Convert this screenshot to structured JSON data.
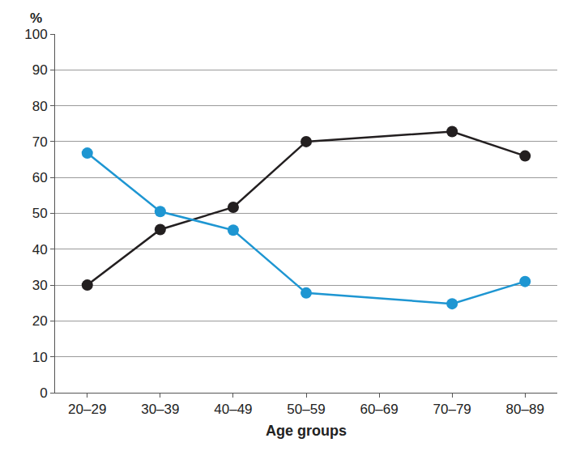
{
  "chart_data": {
    "type": "line",
    "categories": [
      "20–29",
      "30–39",
      "40–49",
      "50–59",
      "60–69",
      "70–79",
      "80–89"
    ],
    "series": [
      {
        "color": "#231f20",
        "values": [
          30,
          45.5,
          51.7,
          70,
          null,
          72.8,
          66
        ]
      },
      {
        "color": "#1e96d2",
        "values": [
          66.8,
          50.5,
          45.3,
          27.8,
          null,
          24.8,
          31
        ]
      }
    ],
    "x_label": "Age groups",
    "y_label": "%",
    "ylim": [
      0,
      100
    ],
    "yticks": [
      0,
      10,
      20,
      30,
      40,
      50,
      60,
      70,
      80,
      90,
      100
    ],
    "grid": true,
    "marker": "circle"
  }
}
